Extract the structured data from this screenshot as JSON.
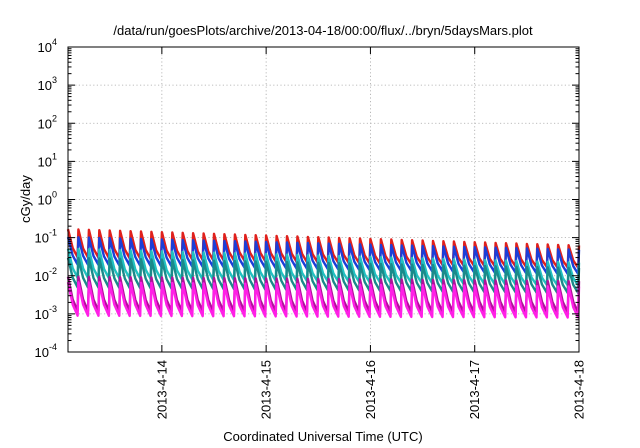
{
  "chart_data": {
    "type": "line",
    "title": "/data/run/goesPlots/archive/2013-04-18/00:00/flux/../bryn/5daysMars.plot",
    "xlabel": "Coordinated Universal Time (UTC)",
    "ylabel": "cGy/day",
    "yscale": "log",
    "ylim": [
      0.0001,
      10000
    ],
    "xlim": [
      "2013-04-13",
      "2013-04-18"
    ],
    "x_ticks": [
      "2013-4-14",
      "2013-4-15",
      "2013-4-16",
      "2013-4-17",
      "2013-4-18"
    ],
    "y_ticks": [
      {
        "base": "10",
        "exp": "-4"
      },
      {
        "base": "10",
        "exp": "-3"
      },
      {
        "base": "10",
        "exp": "-2"
      },
      {
        "base": "10",
        "exp": "-1"
      },
      {
        "base": "10",
        "exp": "0"
      },
      {
        "base": "10",
        "exp": "1"
      },
      {
        "base": "10",
        "exp": "2"
      },
      {
        "base": "10",
        "exp": "3"
      },
      {
        "base": "10",
        "exp": "4"
      }
    ],
    "grid": true,
    "cycles_per_day": 10,
    "series": [
      {
        "color": "#e0201c",
        "peak_start": 0.17,
        "peak_end": 0.062,
        "trough_start": 0.031,
        "trough_end": 0.016
      },
      {
        "color": "#1c3ed8",
        "peak_start": 0.105,
        "peak_end": 0.048,
        "trough_start": 0.02,
        "trough_end": 0.011
      },
      {
        "color": "#21c1c1",
        "peak_start": 0.052,
        "peak_end": 0.022,
        "trough_start": 0.009,
        "trough_end": 0.0055
      },
      {
        "color": "#1a8a8a",
        "peak_start": 0.03,
        "peak_end": 0.016,
        "trough_start": 0.005,
        "trough_end": 0.0035
      },
      {
        "color": "#b0129a",
        "peak_start": 0.0095,
        "peak_end": 0.0072,
        "trough_start": 0.0012,
        "trough_end": 0.0011
      },
      {
        "color": "#ff1fe6",
        "peak_start": 0.0068,
        "peak_end": 0.0052,
        "trough_start": 0.0009,
        "trough_end": 0.0008
      }
    ]
  }
}
